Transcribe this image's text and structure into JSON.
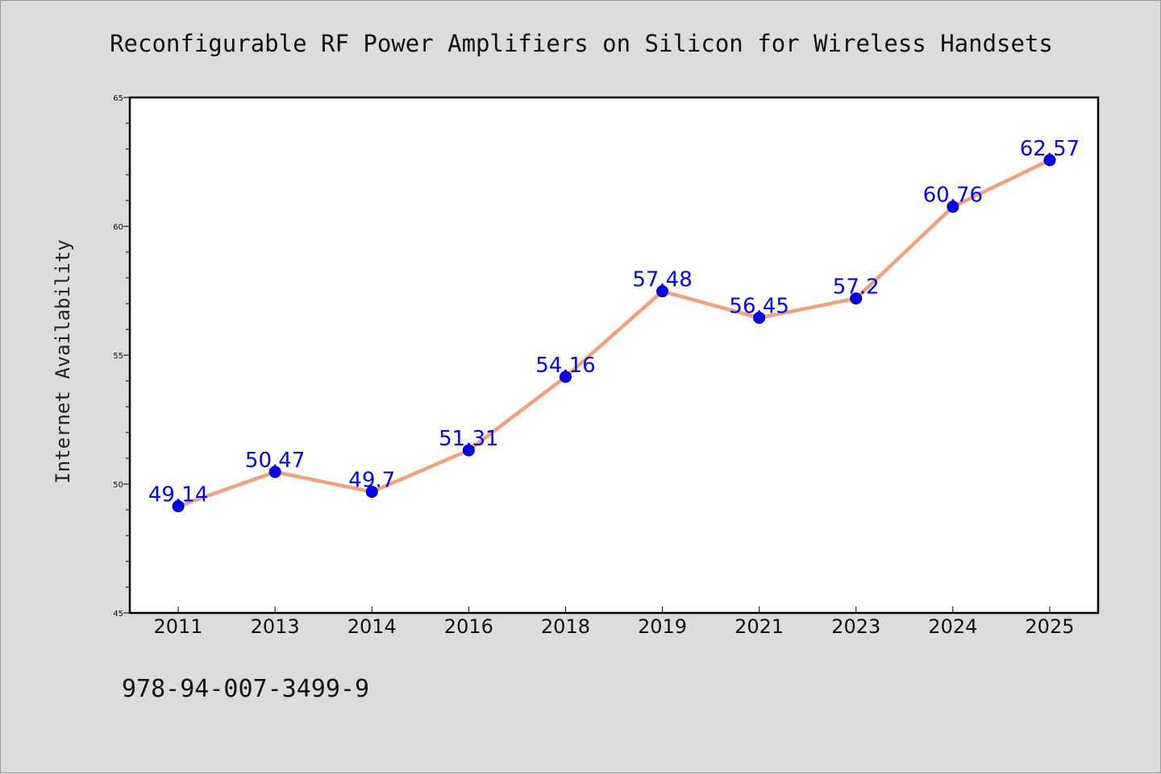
{
  "chart_data": {
    "type": "line",
    "title": "Reconfigurable RF Power Amplifiers on Silicon for Wireless Handsets",
    "xlabel": "",
    "ylabel": "Internet Availability",
    "categories": [
      "2011",
      "2013",
      "2014",
      "2016",
      "2018",
      "2019",
      "2021",
      "2023",
      "2024",
      "2025"
    ],
    "series": [
      {
        "values": [
          49.14,
          50.47,
          49.7,
          51.31,
          54.16,
          57.48,
          56.45,
          57.2,
          60.76,
          62.57
        ],
        "labels": [
          "49.14",
          "50.47",
          "49.7",
          "51.31",
          "54.16",
          "57.48",
          "56.45",
          "57.2",
          "60.76",
          "62.57"
        ],
        "line_color": "#f4a07a",
        "marker_color": "#0000ff"
      }
    ],
    "ylim": [
      45,
      65
    ],
    "yticks": [
      45,
      50,
      55,
      60,
      65
    ],
    "grid": false,
    "legend": "none",
    "background": "#dcdcdc",
    "plot_background": "#ffffff"
  },
  "footer": {
    "isbn": "978-94-007-3499-9"
  }
}
